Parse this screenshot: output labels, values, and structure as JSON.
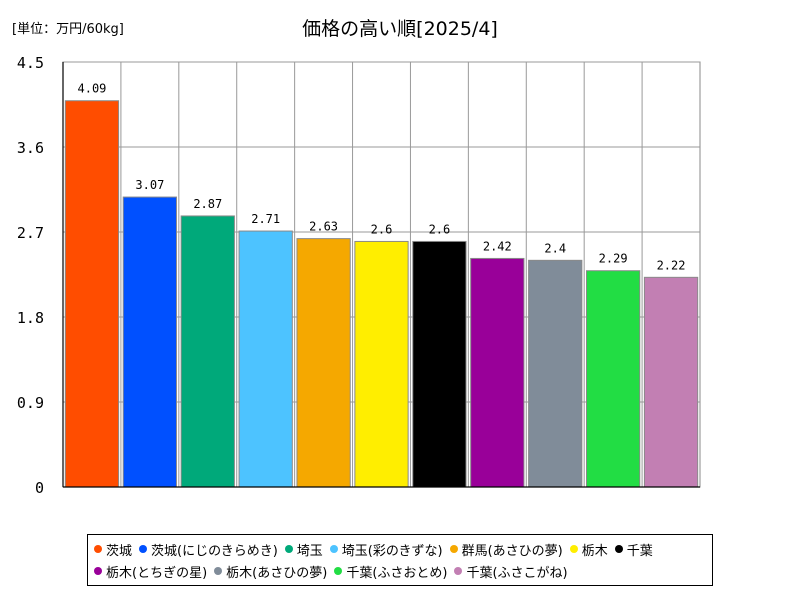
{
  "chart_data": {
    "type": "bar",
    "title": "価格の高い順[2025/4]",
    "unit_label": "[単位：万円/60kg]",
    "categories": [
      "茨城",
      "茨城(にじのきらめき)",
      "埼玉",
      "埼玉(彩のきずな)",
      "群馬(あさひの夢)",
      "栃木",
      "千葉",
      "栃木(とちぎの星)",
      "栃木(あさひの夢)",
      "千葉(ふさおとめ)",
      "千葉(ふさこがね)"
    ],
    "values": [
      4.09,
      3.07,
      2.87,
      2.71,
      2.63,
      2.6,
      2.6,
      2.42,
      2.4,
      2.29,
      2.22
    ],
    "value_labels": [
      "4.09",
      "3.07",
      "2.87",
      "2.71",
      "2.63",
      "2.6",
      "2.6",
      "2.42",
      "2.4",
      "2.29",
      "2.22"
    ],
    "colors": [
      "#ff4d00",
      "#0050ff",
      "#00a97a",
      "#4dc3ff",
      "#f5a800",
      "#ffee00",
      "#000000",
      "#990099",
      "#808c99",
      "#22dd44",
      "#c27fb3"
    ],
    "ylim": [
      0,
      4.5
    ],
    "yticks": [
      "0",
      "0.9",
      "1.8",
      "2.7",
      "3.6",
      "4.5"
    ],
    "ytick_values": [
      0,
      0.9,
      1.8,
      2.7,
      3.6,
      4.5
    ],
    "grid": true,
    "legend_position": "bottom"
  }
}
